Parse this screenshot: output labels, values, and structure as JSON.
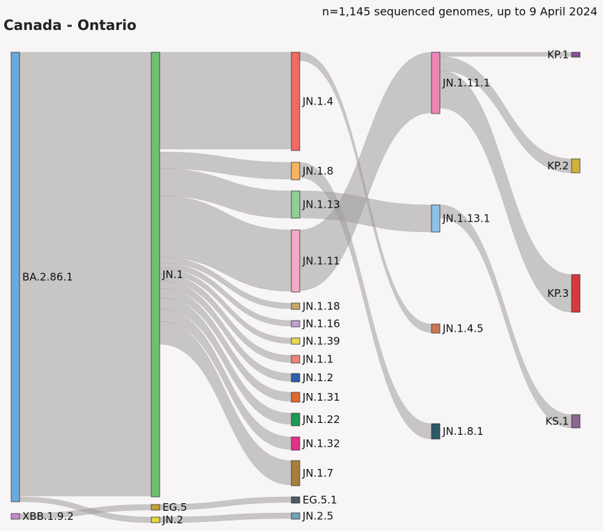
{
  "title": "Canada - Ontario",
  "subtitle": "n=1,145 sequenced genomes, up to 9 April 2024",
  "colors": {
    "link": "#a19c9d",
    "background": "#f8f5f7"
  },
  "nodes": [
    {
      "id": "BA.2.86.1",
      "color": "#6aa9d9"
    },
    {
      "id": "XBB.1.9.2",
      "color": "#c58ccb"
    },
    {
      "id": "JN.1",
      "color": "#6fbf73"
    },
    {
      "id": "EG.5",
      "color": "#c8a13a"
    },
    {
      "id": "JN.2",
      "color": "#e3d545"
    },
    {
      "id": "JN.1.4",
      "color": "#ee6b63"
    },
    {
      "id": "JN.1.8",
      "color": "#f7b463"
    },
    {
      "id": "JN.1.13",
      "color": "#8fcf96"
    },
    {
      "id": "JN.1.11",
      "color": "#f6a9c8"
    },
    {
      "id": "JN.1.18",
      "color": "#c9a867"
    },
    {
      "id": "JN.1.16",
      "color": "#c2a0cf"
    },
    {
      "id": "JN.1.39",
      "color": "#e6dc4f"
    },
    {
      "id": "JN.1.1",
      "color": "#ec8579"
    },
    {
      "id": "JN.1.2",
      "color": "#2c5fae"
    },
    {
      "id": "JN.1.31",
      "color": "#e06a2e"
    },
    {
      "id": "JN.1.22",
      "color": "#1e9a55"
    },
    {
      "id": "JN.1.32",
      "color": "#e4318a"
    },
    {
      "id": "JN.1.7",
      "color": "#a6803a"
    },
    {
      "id": "EG.5.1",
      "color": "#505a60"
    },
    {
      "id": "JN.2.5",
      "color": "#73a4bd"
    },
    {
      "id": "JN.1.11.1",
      "color": "#ee84b5"
    },
    {
      "id": "JN.1.13.1",
      "color": "#8ec1e8"
    },
    {
      "id": "JN.1.4.5",
      "color": "#c87a52"
    },
    {
      "id": "JN.1.8.1",
      "color": "#2f5868"
    },
    {
      "id": "KP.1",
      "color": "#8a4f9e"
    },
    {
      "id": "KP.2",
      "color": "#cdb43b"
    },
    {
      "id": "KP.3",
      "color": "#d63a3f"
    },
    {
      "id": "KS.1",
      "color": "#8a6690"
    }
  ],
  "links": [
    {
      "source": "BA.2.86.1",
      "target": "JN.1"
    },
    {
      "source": "XBB.1.9.2",
      "target": "EG.5"
    },
    {
      "source": "BA.2.86.1",
      "target": "JN.2"
    },
    {
      "source": "JN.1",
      "target": "JN.1.4"
    },
    {
      "source": "JN.1",
      "target": "JN.1.8"
    },
    {
      "source": "JN.1",
      "target": "JN.1.13"
    },
    {
      "source": "JN.1",
      "target": "JN.1.11"
    },
    {
      "source": "JN.1",
      "target": "JN.1.18"
    },
    {
      "source": "JN.1",
      "target": "JN.1.16"
    },
    {
      "source": "JN.1",
      "target": "JN.1.39"
    },
    {
      "source": "JN.1",
      "target": "JN.1.1"
    },
    {
      "source": "JN.1",
      "target": "JN.1.2"
    },
    {
      "source": "JN.1",
      "target": "JN.1.31"
    },
    {
      "source": "JN.1",
      "target": "JN.1.22"
    },
    {
      "source": "JN.1",
      "target": "JN.1.32"
    },
    {
      "source": "JN.1",
      "target": "JN.1.7"
    },
    {
      "source": "EG.5",
      "target": "EG.5.1"
    },
    {
      "source": "JN.2",
      "target": "JN.2.5"
    },
    {
      "source": "JN.1.4",
      "target": "JN.1.4.5"
    },
    {
      "source": "JN.1.8",
      "target": "JN.1.8.1"
    },
    {
      "source": "JN.1.13",
      "target": "JN.1.13.1"
    },
    {
      "source": "JN.1.11",
      "target": "JN.1.11.1"
    },
    {
      "source": "JN.1.11.1",
      "target": "KP.1"
    },
    {
      "source": "JN.1.11.1",
      "target": "KP.2"
    },
    {
      "source": "JN.1.11.1",
      "target": "KP.3"
    },
    {
      "source": "JN.1.13.1",
      "target": "KS.1"
    }
  ]
}
